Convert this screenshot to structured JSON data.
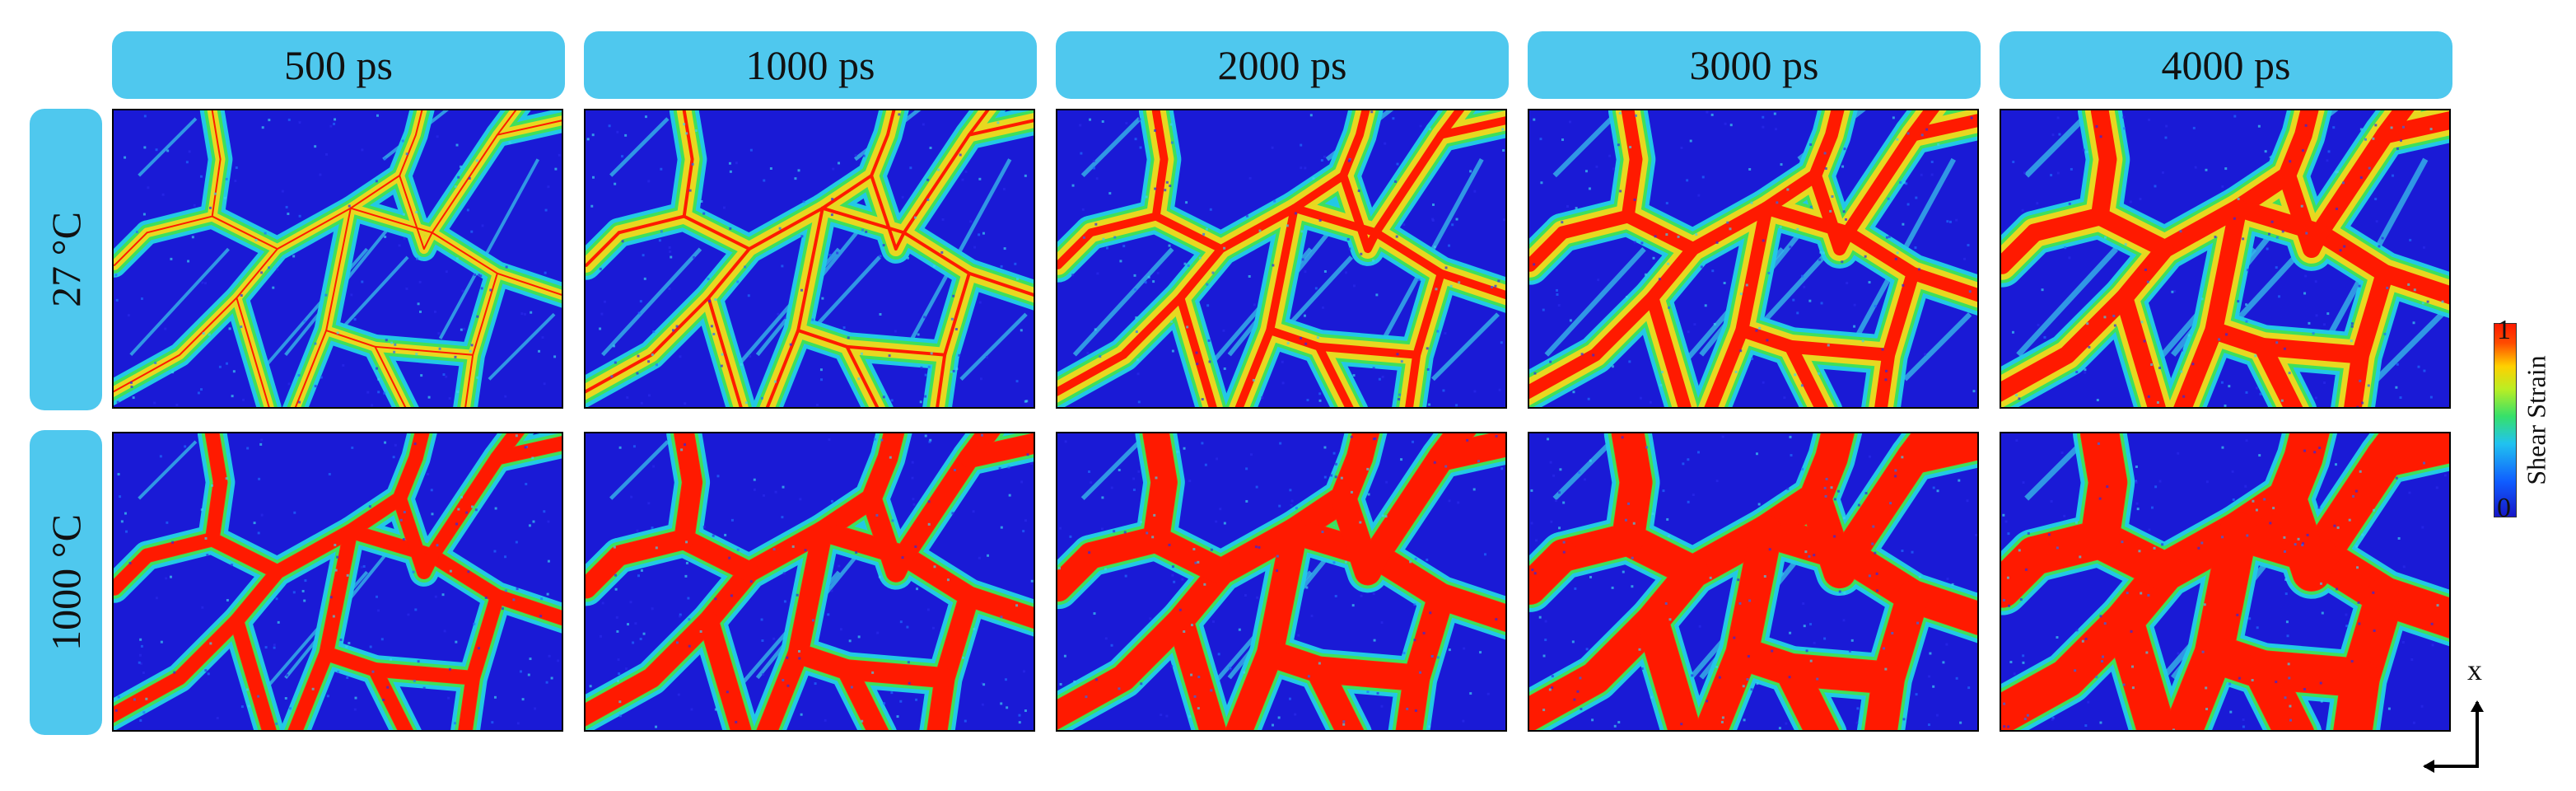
{
  "columns": [
    "500 ps",
    "1000 ps",
    "2000 ps",
    "3000 ps",
    "4000 ps"
  ],
  "rows": [
    "27 °C",
    "1000 °C"
  ],
  "colorbar": {
    "title": "Shear Strain",
    "max_label": "1",
    "min_label": "0",
    "colors": [
      "#1717c8",
      "#21c3ef",
      "#36e06a",
      "#ffd000",
      "#ff1a00"
    ]
  },
  "axes": {
    "vertical": "x"
  }
}
